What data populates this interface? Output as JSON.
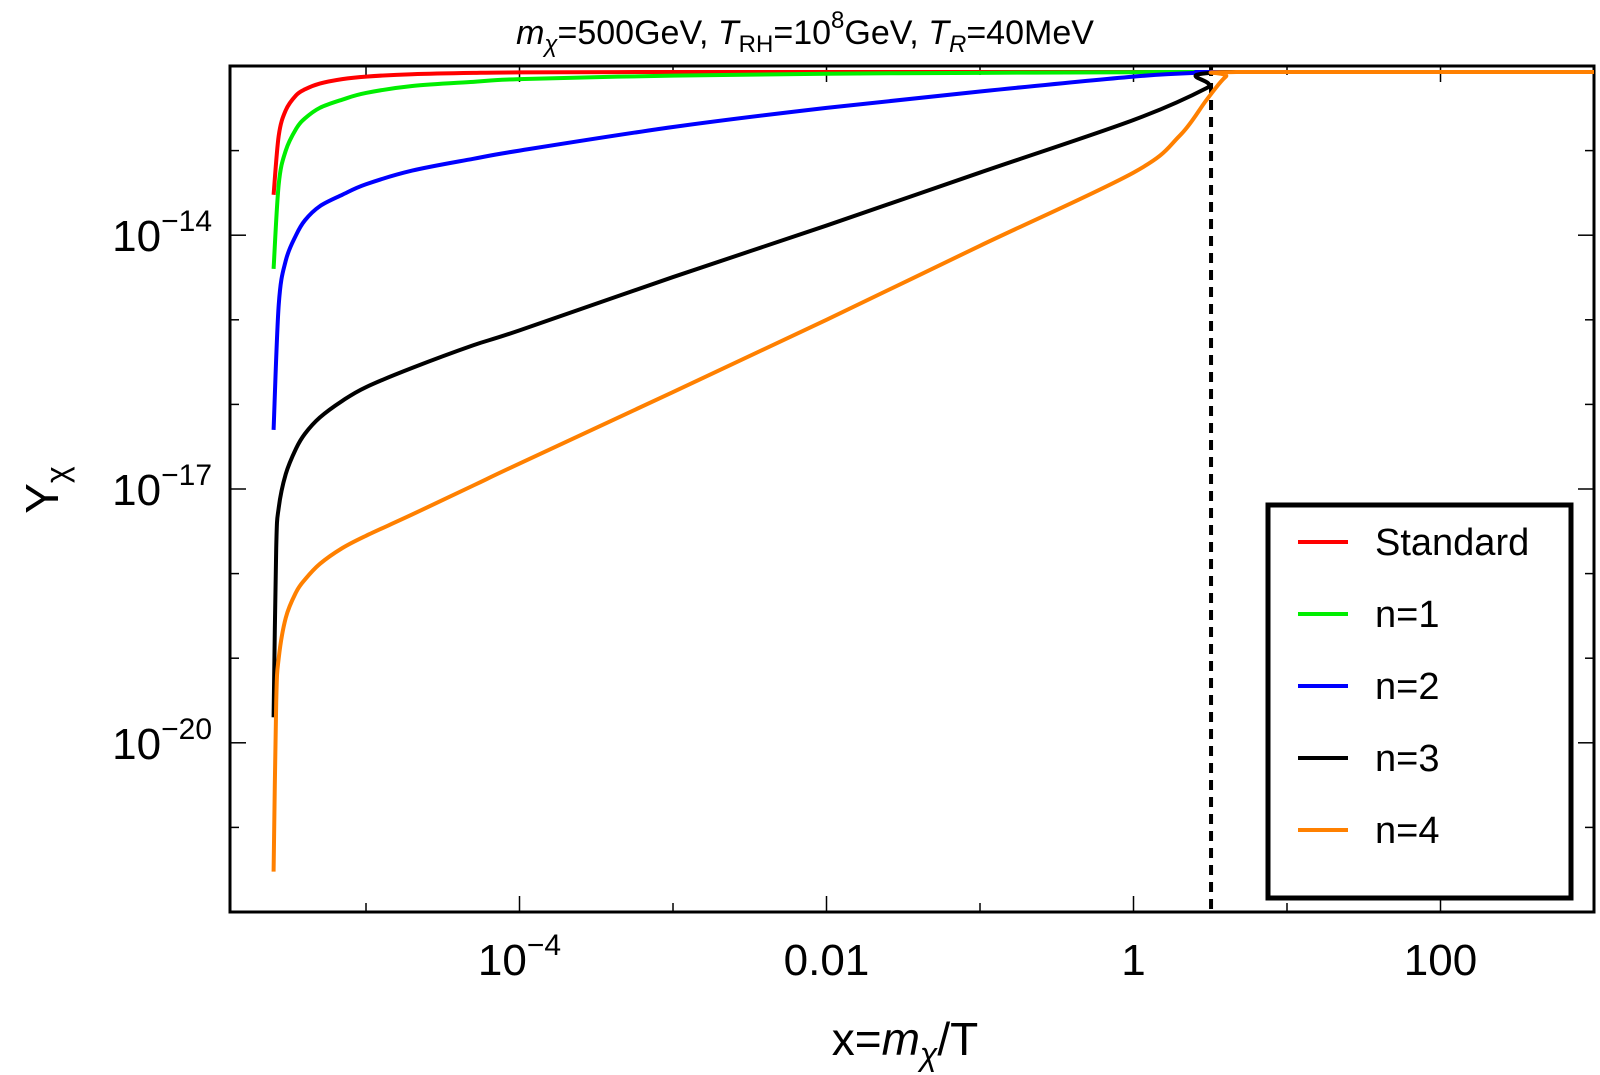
{
  "chart_data": {
    "type": "line",
    "title": {
      "m_label": "m",
      "chi": "χ",
      "mass_value": "=500GeV, ",
      "trh_label": "T",
      "trh_sub": "RH",
      "trh_value": "=10",
      "trh_exp": "8",
      "trh_unit": "GeV, ",
      "tr_label": "T",
      "tr_sub": "R",
      "tr_value": "=40MeV"
    },
    "xlabel": {
      "prefix": "x=",
      "m": "m",
      "chi": "χ",
      "suffix": "/T"
    },
    "ylabel": {
      "Y": "Y",
      "chi": "χ"
    },
    "xscale": "log",
    "yscale": "log",
    "xlim": [
      1.3e-06,
      1000
    ],
    "ylim": [
      1e-22,
      1e-12
    ],
    "x_ticks": [
      {
        "value": 0.0001,
        "base": "10",
        "exp": "−4"
      },
      {
        "value": 0.01,
        "label": "0.01"
      },
      {
        "value": 1,
        "label": "1"
      },
      {
        "value": 100,
        "label": "100"
      }
    ],
    "y_ticks": [
      {
        "value": 1e-14,
        "base": "10",
        "exp": "−14"
      },
      {
        "value": 1e-17,
        "base": "10",
        "exp": "−17"
      },
      {
        "value": 1e-20,
        "base": "10",
        "exp": "−20"
      }
    ],
    "vertical_line": {
      "x": 3.2,
      "style": "dashed",
      "color": "#000000"
    },
    "series": [
      {
        "name": "Standard",
        "color": "#ff0000",
        "x": [
          2.5e-06,
          2.7e-06,
          3e-06,
          3.5e-06,
          4e-06,
          5e-06,
          7e-06,
          1e-05,
          2e-05,
          5e-05,
          0.0001,
          0.001,
          0.01,
          1,
          4,
          1000
        ],
        "y": [
          3e-14,
          1.5e-13,
          3e-13,
          4.5e-13,
          5.3e-13,
          6.2e-13,
          7e-13,
          7.5e-13,
          8e-13,
          8.3e-13,
          8.4e-13,
          8.5e-13,
          8.5e-13,
          8.5e-13,
          8.5e-13,
          8.5e-13
        ]
      },
      {
        "name": "n=1",
        "color": "#00ee00",
        "x": [
          2.5e-06,
          2.7e-06,
          3e-06,
          3.5e-06,
          4e-06,
          5e-06,
          7e-06,
          1e-05,
          2e-05,
          5e-05,
          0.0001,
          0.001,
          0.01,
          0.1,
          1,
          4,
          1000
        ],
        "y": [
          4e-15,
          4e-14,
          1e-13,
          1.8e-13,
          2.4e-13,
          3.2e-13,
          4e-13,
          4.8e-13,
          5.8e-13,
          6.5e-13,
          7e-13,
          7.7e-13,
          8.1e-13,
          8.3e-13,
          8.45e-13,
          8.5e-13,
          8.5e-13
        ]
      },
      {
        "name": "n=2",
        "color": "#0000ff",
        "x": [
          2.5e-06,
          2.7e-06,
          3e-06,
          3.5e-06,
          4e-06,
          5e-06,
          7e-06,
          1e-05,
          2e-05,
          5e-05,
          0.0001,
          0.001,
          0.01,
          0.1,
          1,
          3,
          4,
          1000
        ],
        "y": [
          5e-17,
          1.5e-15,
          5e-15,
          1e-14,
          1.5e-14,
          2.2e-14,
          3e-14,
          4e-14,
          5.8e-14,
          8e-14,
          1e-13,
          1.9e-13,
          3.2e-13,
          5e-13,
          7.5e-13,
          8.4e-13,
          8.5e-13,
          8.5e-13
        ]
      },
      {
        "name": "n=3",
        "color": "#000000",
        "x": [
          2.5e-06,
          2.6e-06,
          2.7e-06,
          3e-06,
          3.5e-06,
          4e-06,
          5e-06,
          7e-06,
          1e-05,
          2e-05,
          5e-05,
          0.0001,
          0.001,
          0.01,
          0.1,
          1,
          3,
          4,
          1000
        ],
        "y": [
          2e-20,
          2e-18,
          6e-18,
          1.5e-17,
          3e-17,
          4.5e-17,
          7e-17,
          1.1e-16,
          1.6e-16,
          2.7e-16,
          5e-16,
          7.5e-16,
          3.2e-15,
          1.3e-14,
          5.5e-14,
          2.3e-13,
          5.5e-13,
          8.5e-13,
          8.5e-13
        ]
      },
      {
        "name": "n=4",
        "color": "#ff8000",
        "x": [
          2.5e-06,
          2.6e-06,
          2.7e-06,
          3e-06,
          3.5e-06,
          4e-06,
          5e-06,
          7e-06,
          1e-05,
          2e-05,
          5e-05,
          0.0001,
          0.001,
          0.01,
          0.1,
          1,
          2,
          3,
          4,
          5,
          1000
        ],
        "y": [
          3e-22,
          3e-20,
          1e-19,
          3e-19,
          6e-19,
          8.5e-19,
          1.3e-18,
          2e-18,
          2.8e-18,
          5e-18,
          1.1e-17,
          2e-17,
          1.4e-16,
          1e-15,
          7.5e-15,
          5.5e-14,
          1.5e-13,
          4e-13,
          7.5e-13,
          8.5e-13,
          8.5e-13
        ]
      }
    ],
    "legend": {
      "position": "bottom-right"
    }
  }
}
